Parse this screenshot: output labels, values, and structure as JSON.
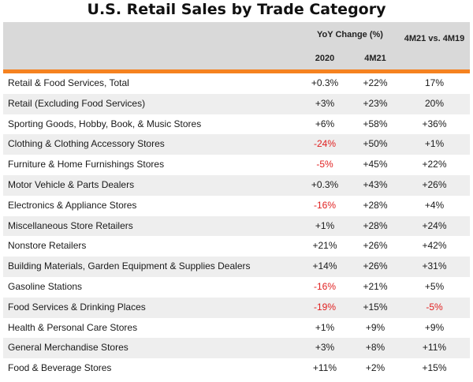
{
  "chart_data": {
    "type": "table",
    "title": "U.S. Retail Sales by Trade Category",
    "column_group_label": "YoY Change (%)",
    "columns": [
      "2020",
      "4M21",
      "4M21 vs. 4M19"
    ],
    "rows": [
      {
        "category": "Retail & Food Services, Total",
        "values": [
          "+0.3%",
          "+22%",
          "17%"
        ],
        "negative": [
          false,
          false,
          false
        ]
      },
      {
        "category": "Retail (Excluding Food Services)",
        "values": [
          "+3%",
          "+23%",
          "20%"
        ],
        "negative": [
          false,
          false,
          false
        ]
      },
      {
        "category": "Sporting Goods, Hobby, Book, & Music Stores",
        "values": [
          "+6%",
          "+58%",
          "+36%"
        ],
        "negative": [
          false,
          false,
          false
        ]
      },
      {
        "category": "Clothing & Clothing Accessory Stores",
        "values": [
          "-24%",
          "+50%",
          "+1%"
        ],
        "negative": [
          true,
          false,
          false
        ]
      },
      {
        "category": "Furniture & Home Furnishings Stores",
        "values": [
          "-5%",
          "+45%",
          "+22%"
        ],
        "negative": [
          true,
          false,
          false
        ]
      },
      {
        "category": "Motor Vehicle & Parts Dealers",
        "values": [
          "+0.3%",
          "+43%",
          "+26%"
        ],
        "negative": [
          false,
          false,
          false
        ]
      },
      {
        "category": "Electronics & Appliance Stores",
        "values": [
          "-16%",
          "+28%",
          "+4%"
        ],
        "negative": [
          true,
          false,
          false
        ]
      },
      {
        "category": "Miscellaneous Store Retailers",
        "values": [
          "+1%",
          "+28%",
          "+24%"
        ],
        "negative": [
          false,
          false,
          false
        ]
      },
      {
        "category": "Nonstore Retailers",
        "values": [
          "+21%",
          "+26%",
          "+42%"
        ],
        "negative": [
          false,
          false,
          false
        ]
      },
      {
        "category": "Building Materials, Garden Equipment & Supplies Dealers",
        "values": [
          "+14%",
          "+26%",
          "+31%"
        ],
        "negative": [
          false,
          false,
          false
        ]
      },
      {
        "category": "Gasoline Stations",
        "values": [
          "-16%",
          "+21%",
          "+5%"
        ],
        "negative": [
          true,
          false,
          false
        ]
      },
      {
        "category": "Food Services & Drinking Places",
        "values": [
          "-19%",
          "+15%",
          "-5%"
        ],
        "negative": [
          true,
          false,
          true
        ]
      },
      {
        "category": "Health & Personal Care Stores",
        "values": [
          "+1%",
          "+9%",
          "+9%"
        ],
        "negative": [
          false,
          false,
          false
        ]
      },
      {
        "category": "General Merchandise Stores",
        "values": [
          "+3%",
          "+8%",
          "+11%"
        ],
        "negative": [
          false,
          false,
          false
        ]
      },
      {
        "category": "Food & Beverage Stores",
        "values": [
          "+11%",
          "+2%",
          "+15%"
        ],
        "negative": [
          false,
          false,
          false
        ]
      }
    ],
    "colors": {
      "accent_rule": "#f58220",
      "negative_text": "#e02020",
      "header_bg": "#d9d9d9",
      "stripe_bg": "#eeeeee"
    }
  }
}
